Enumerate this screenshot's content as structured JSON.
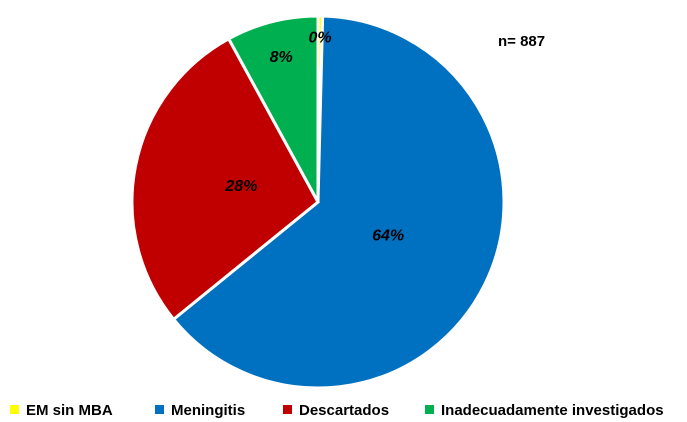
{
  "chart_data": {
    "type": "pie",
    "annotation": "n= 887",
    "categories": [
      "EM sin MBA",
      "Meningitis",
      "Descartados",
      "Inadecuadamente investigados"
    ],
    "values": [
      0.4,
      64,
      28,
      8
    ],
    "value_labels": [
      "0%",
      "64%",
      "28%",
      "8%"
    ],
    "colors": [
      "#ffff00",
      "#0070c0",
      "#c00000",
      "#00b050"
    ]
  }
}
